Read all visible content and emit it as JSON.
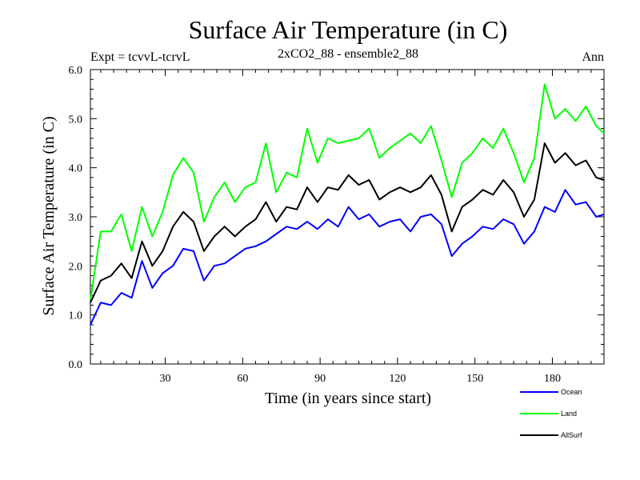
{
  "header": {
    "title": "Surface Air Temperature (in C)",
    "expt_label": "Expt = tcvvL-tcrvL",
    "subtitle": "2xCO2_88 - ensemble2_88",
    "season": "Ann"
  },
  "chart_data": {
    "type": "line",
    "title": "Surface Air Temperature (in C)",
    "xlabel": "Time (in years since start)",
    "ylabel": "Surface Air Temperature (in C)",
    "xlim": [
      1,
      200
    ],
    "ylim": [
      0,
      6
    ],
    "x_ticks": [
      30,
      60,
      90,
      120,
      150,
      180
    ],
    "x_tick_labels": [
      "30",
      "60",
      "90",
      "120",
      "150",
      "180"
    ],
    "y_ticks": [
      0,
      1,
      2,
      3,
      4,
      5,
      6
    ],
    "y_tick_labels": [
      "0.0",
      "1.0",
      "2.0",
      "3.0",
      "4.0",
      "5.0",
      "6.0"
    ],
    "grid": false,
    "legend_position": "bottom-right",
    "x": [
      1,
      5,
      9,
      13,
      17,
      21,
      25,
      29,
      33,
      37,
      41,
      45,
      49,
      53,
      57,
      61,
      65,
      69,
      73,
      77,
      81,
      85,
      89,
      93,
      97,
      101,
      105,
      109,
      113,
      117,
      121,
      125,
      129,
      133,
      137,
      141,
      145,
      149,
      153,
      157,
      161,
      165,
      169,
      173,
      177,
      181,
      185,
      189,
      193,
      197,
      200
    ],
    "series": [
      {
        "name": "Ocean",
        "color": "#0000ff",
        "values": [
          0.8,
          1.25,
          1.2,
          1.45,
          1.35,
          2.1,
          1.55,
          1.85,
          2.0,
          2.35,
          2.3,
          1.7,
          2.0,
          2.05,
          2.2,
          2.35,
          2.4,
          2.5,
          2.65,
          2.8,
          2.75,
          2.9,
          2.75,
          2.95,
          2.8,
          3.2,
          2.95,
          3.05,
          2.8,
          2.9,
          2.95,
          2.7,
          3.0,
          3.05,
          2.85,
          2.2,
          2.45,
          2.6,
          2.8,
          2.75,
          2.95,
          2.85,
          2.45,
          2.7,
          3.2,
          3.1,
          3.55,
          3.25,
          3.3,
          3.0,
          3.05
        ]
      },
      {
        "name": "Land",
        "color": "#00ff00",
        "values": [
          1.3,
          2.7,
          2.7,
          3.05,
          2.3,
          3.2,
          2.6,
          3.1,
          3.85,
          4.2,
          3.9,
          2.9,
          3.4,
          3.7,
          3.3,
          3.6,
          3.7,
          4.5,
          3.5,
          3.9,
          3.8,
          4.8,
          4.1,
          4.6,
          4.5,
          4.55,
          4.6,
          4.8,
          4.2,
          4.4,
          4.55,
          4.7,
          4.5,
          4.85,
          4.15,
          3.4,
          4.1,
          4.3,
          4.6,
          4.4,
          4.8,
          4.3,
          3.7,
          4.2,
          5.7,
          5.0,
          5.2,
          4.95,
          5.25,
          4.85,
          4.7
        ]
      },
      {
        "name": "AllSurf",
        "color": "#000000",
        "values": [
          1.25,
          1.7,
          1.8,
          2.05,
          1.75,
          2.5,
          2.0,
          2.3,
          2.8,
          3.1,
          2.9,
          2.3,
          2.6,
          2.8,
          2.6,
          2.8,
          2.95,
          3.3,
          2.9,
          3.2,
          3.15,
          3.6,
          3.3,
          3.6,
          3.55,
          3.85,
          3.65,
          3.75,
          3.35,
          3.5,
          3.6,
          3.5,
          3.6,
          3.85,
          3.45,
          2.7,
          3.2,
          3.35,
          3.55,
          3.45,
          3.75,
          3.5,
          3.0,
          3.35,
          4.5,
          4.1,
          4.3,
          4.05,
          4.15,
          3.8,
          3.75
        ]
      }
    ]
  }
}
